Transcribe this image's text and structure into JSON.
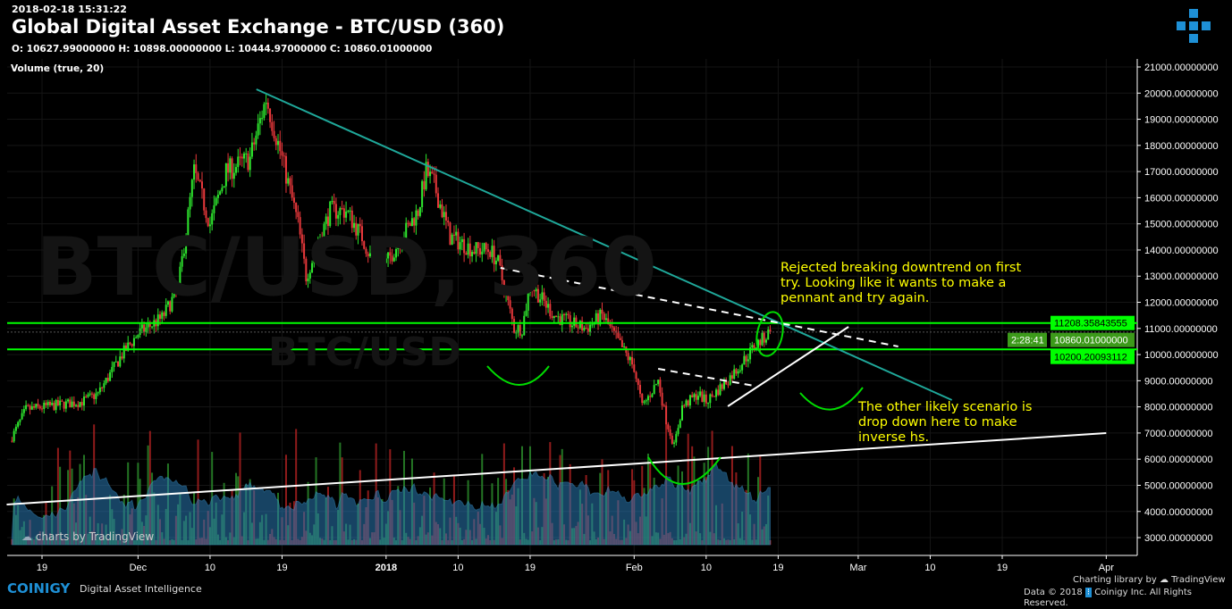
{
  "header": {
    "timestamp": "2018-02-18 15:31:22",
    "title": "Global Digital Asset Exchange - BTC/USD (360)",
    "ohlc": "O: 10627.99000000 H: 10898.00000000 L: 10444.97000000 C: 10860.01000000",
    "volume_label": "Volume (true, 20)"
  },
  "watermark": {
    "main": "BTC/USD, 360",
    "sub": "BTC/USD"
  },
  "chart_data": {
    "type": "candlestick",
    "interval": "360",
    "close_path": [
      [
        "2017-11-15",
        6700
      ],
      [
        "2017-11-17",
        7900
      ],
      [
        "2017-11-24",
        8200
      ],
      [
        "2017-11-26",
        8500
      ],
      [
        "2017-11-29",
        10000
      ],
      [
        "2017-12-01",
        10800
      ],
      [
        "2017-12-04",
        11400
      ],
      [
        "2017-12-06",
        12500
      ],
      [
        "2017-12-08",
        17000
      ],
      [
        "2017-12-10",
        15000
      ],
      [
        "2017-12-12",
        17000
      ],
      [
        "2017-12-15",
        17500
      ],
      [
        "2017-12-17",
        19800
      ],
      [
        "2017-12-19",
        17500
      ],
      [
        "2017-12-21",
        15000
      ],
      [
        "2017-12-22",
        13000
      ],
      [
        "2017-12-25",
        15500
      ],
      [
        "2017-12-27",
        15500
      ],
      [
        "2017-12-29",
        14500
      ],
      [
        "2017-12-31",
        13000
      ],
      [
        "2018-01-03",
        14500
      ],
      [
        "2018-01-05",
        15500
      ],
      [
        "2018-01-06",
        17000
      ],
      [
        "2018-01-07",
        16500
      ],
      [
        "2018-01-09",
        14500
      ],
      [
        "2018-01-12",
        14000
      ],
      [
        "2018-01-14",
        14000
      ],
      [
        "2018-01-15",
        13500
      ],
      [
        "2018-01-17",
        11000
      ],
      [
        "2018-01-18",
        11000
      ],
      [
        "2018-01-19",
        12700
      ],
      [
        "2018-01-22",
        11500
      ],
      [
        "2018-01-24",
        11200
      ],
      [
        "2018-01-26",
        11000
      ],
      [
        "2018-01-28",
        11500
      ],
      [
        "2018-01-31",
        10000
      ],
      [
        "2018-02-01",
        9500
      ],
      [
        "2018-02-02",
        8000
      ],
      [
        "2018-02-04",
        9000
      ],
      [
        "2018-02-05",
        7500
      ],
      [
        "2018-02-06",
        6500
      ],
      [
        "2018-02-07",
        8000
      ],
      [
        "2018-02-09",
        8500
      ],
      [
        "2018-02-10",
        8200
      ],
      [
        "2018-02-12",
        8800
      ],
      [
        "2018-02-14",
        9500
      ],
      [
        "2018-02-16",
        10300
      ],
      [
        "2018-02-18",
        10860
      ]
    ],
    "y_ticks": [
      21000,
      20000,
      19000,
      18000,
      17000,
      16000,
      15000,
      14000,
      13000,
      12000,
      11000,
      10000,
      9000,
      8000,
      7000,
      6000,
      5000,
      4000,
      3000
    ],
    "ylim": [
      3000,
      21000
    ],
    "x_ticks": [
      [
        "2017-11-19",
        "19"
      ],
      [
        "2017-12-01",
        "Dec"
      ],
      [
        "2017-12-10",
        "10"
      ],
      [
        "2017-12-19",
        "19"
      ],
      [
        "2018-01-01",
        "2018"
      ],
      [
        "2018-01-10",
        "10"
      ],
      [
        "2018-01-19",
        "19"
      ],
      [
        "2018-02-01",
        "Feb"
      ],
      [
        "2018-02-10",
        "10"
      ],
      [
        "2018-02-19",
        "19"
      ],
      [
        "2018-03-01",
        "Mar"
      ],
      [
        "2018-03-10",
        "10"
      ],
      [
        "2018-03-19",
        "19"
      ],
      [
        "2018-04-01",
        "Apr"
      ]
    ],
    "price_labels": [
      {
        "value": 11208.35843555,
        "text": "11208.35843555",
        "color": "#00ff00"
      },
      {
        "value": 10860.01,
        "text": "10860.01000000",
        "color": "#3c9a1a"
      },
      {
        "value": 10200.20093112,
        "text": "10200.20093112",
        "color": "#00ff00"
      }
    ],
    "countdown": "2:28:41",
    "drawings": [
      {
        "name": "downtrend-line",
        "color": "#1fa89a",
        "dash": false,
        "p1": [
          "2017-12-15T19:00",
          20146
        ],
        "p2": [
          "2018-03-12T17:00",
          8261
        ]
      },
      {
        "name": "support-line",
        "color": "#ffffff",
        "dash": false,
        "p1": [
          "2017-11-14T14:00",
          4265
        ],
        "p2": [
          "2018-04-01T00:00",
          6997
        ]
      },
      {
        "name": "dashed-upper-line",
        "color": "#ffffff",
        "dash": true,
        "p1": [
          "2018-01-15T07:00",
          13316
        ],
        "p2": [
          "2018-03-06T00:00",
          10310
        ]
      },
      {
        "name": "dashed-lower-line",
        "color": "#ffffff",
        "dash": true,
        "p1": [
          "2018-02-04T00:00",
          9456
        ],
        "p2": [
          "2018-02-16T00:00",
          8807
        ]
      },
      {
        "name": "pennant-support-line",
        "color": "#ffffff",
        "dash": false,
        "p1": [
          "2018-02-12T17:00",
          8022
        ],
        "p2": [
          "2018-02-27T19:00",
          11061
        ]
      }
    ],
    "annotations": [
      "Rejected breaking downtrend on first try. Looking like it wants to make a pennant and try again.",
      "The other likely scenario is drop down here to make inverse hs."
    ],
    "colors": {
      "up": "#2ee82e",
      "down": "#e8383b",
      "volume_ma": "#2a7ab5",
      "hline": "#00ff00"
    }
  },
  "footer": {
    "brand": "COINIGY",
    "tagline": "Digital Asset Intelligence",
    "charting": "Charting library by",
    "tv": "TradingView",
    "copyright": "Data © 2018",
    "copyright2": "Coinigy Inc. All Rights Reserved.",
    "tv_badge": "charts by TradingView"
  }
}
